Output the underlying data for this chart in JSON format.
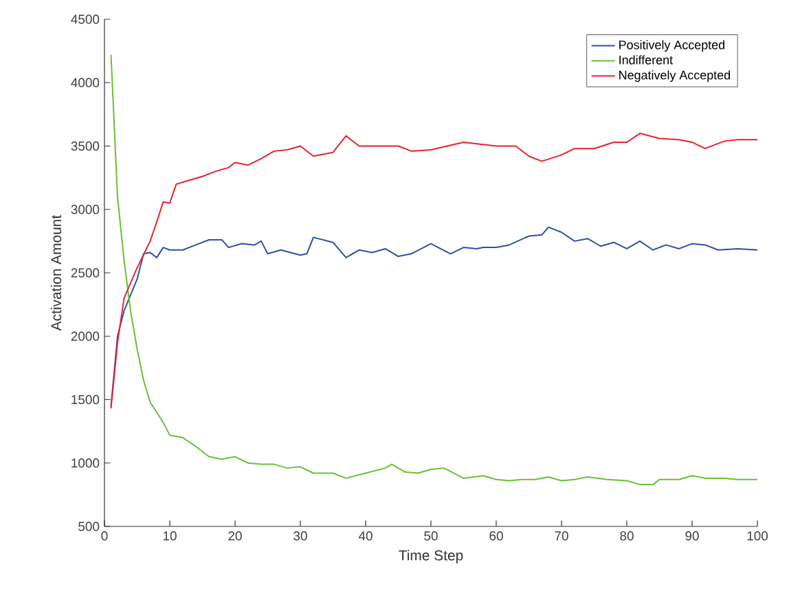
{
  "chart_data": {
    "type": "line",
    "xlabel": "Time Step",
    "ylabel": "Activation Amount",
    "xlim": [
      0,
      100
    ],
    "ylim": [
      500,
      4500
    ],
    "xticks": [
      0,
      10,
      20,
      30,
      40,
      50,
      60,
      70,
      80,
      90,
      100
    ],
    "yticks": [
      500,
      1000,
      1500,
      2000,
      2500,
      3000,
      3500,
      4000,
      4500
    ],
    "legend": "top right",
    "grid": false,
    "marker": "none",
    "line_style": "solid",
    "series": [
      {
        "name": "Positively Accepted",
        "color": "#2e4fa3",
        "x": [
          1,
          2,
          3,
          5,
          6,
          7,
          8,
          9,
          10,
          12,
          14,
          16,
          18,
          19,
          21,
          23,
          24,
          25,
          27,
          30,
          31,
          32,
          35,
          37,
          39,
          41,
          43,
          45,
          47,
          50,
          53,
          55,
          57,
          58,
          60,
          62,
          65,
          67,
          68,
          70,
          72,
          74,
          76,
          78,
          80,
          82,
          84,
          86,
          88,
          90,
          92,
          94,
          97,
          100
        ],
        "values": [
          1450,
          2000,
          2200,
          2450,
          2650,
          2660,
          2620,
          2700,
          2680,
          2680,
          2720,
          2760,
          2760,
          2700,
          2730,
          2720,
          2750,
          2650,
          2680,
          2640,
          2650,
          2780,
          2740,
          2620,
          2680,
          2660,
          2690,
          2630,
          2650,
          2730,
          2650,
          2700,
          2690,
          2700,
          2700,
          2720,
          2790,
          2800,
          2860,
          2820,
          2750,
          2770,
          2710,
          2740,
          2690,
          2750,
          2680,
          2720,
          2690,
          2730,
          2720,
          2680,
          2690,
          2680
        ]
      },
      {
        "name": "Indifferent",
        "color": "#66c233",
        "x": [
          1,
          2,
          3,
          4,
          5,
          6,
          7,
          8,
          9,
          10,
          12,
          14,
          16,
          18,
          20,
          22,
          24,
          26,
          28,
          30,
          32,
          35,
          37,
          40,
          43,
          44,
          46,
          48,
          50,
          52,
          55,
          58,
          60,
          62,
          64,
          66,
          68,
          70,
          72,
          74,
          77,
          80,
          82,
          84,
          85,
          88,
          90,
          92,
          95,
          97,
          100
        ],
        "values": [
          4220,
          3100,
          2600,
          2200,
          1900,
          1650,
          1480,
          1400,
          1320,
          1220,
          1200,
          1130,
          1050,
          1030,
          1050,
          1000,
          990,
          990,
          960,
          970,
          920,
          920,
          880,
          920,
          960,
          990,
          930,
          920,
          950,
          960,
          880,
          900,
          870,
          860,
          870,
          870,
          890,
          860,
          870,
          890,
          870,
          860,
          830,
          830,
          870,
          870,
          900,
          880,
          880,
          870,
          870
        ]
      },
      {
        "name": "Negatively Accepted",
        "color": "#e8222e",
        "x": [
          1,
          2,
          3,
          5,
          7,
          8,
          9,
          10,
          11,
          13,
          15,
          17,
          19,
          20,
          22,
          24,
          26,
          28,
          30,
          32,
          35,
          37,
          39,
          42,
          45,
          47,
          50,
          55,
          60,
          63,
          65,
          67,
          70,
          72,
          75,
          78,
          80,
          82,
          85,
          88,
          90,
          92,
          95,
          97,
          100
        ],
        "values": [
          1430,
          1950,
          2300,
          2540,
          2750,
          2900,
          3060,
          3050,
          3200,
          3230,
          3260,
          3300,
          3330,
          3370,
          3350,
          3400,
          3460,
          3470,
          3500,
          3420,
          3450,
          3580,
          3500,
          3500,
          3500,
          3460,
          3470,
          3530,
          3500,
          3500,
          3420,
          3380,
          3430,
          3480,
          3480,
          3530,
          3530,
          3600,
          3560,
          3550,
          3530,
          3480,
          3540,
          3550,
          3550
        ]
      }
    ]
  }
}
